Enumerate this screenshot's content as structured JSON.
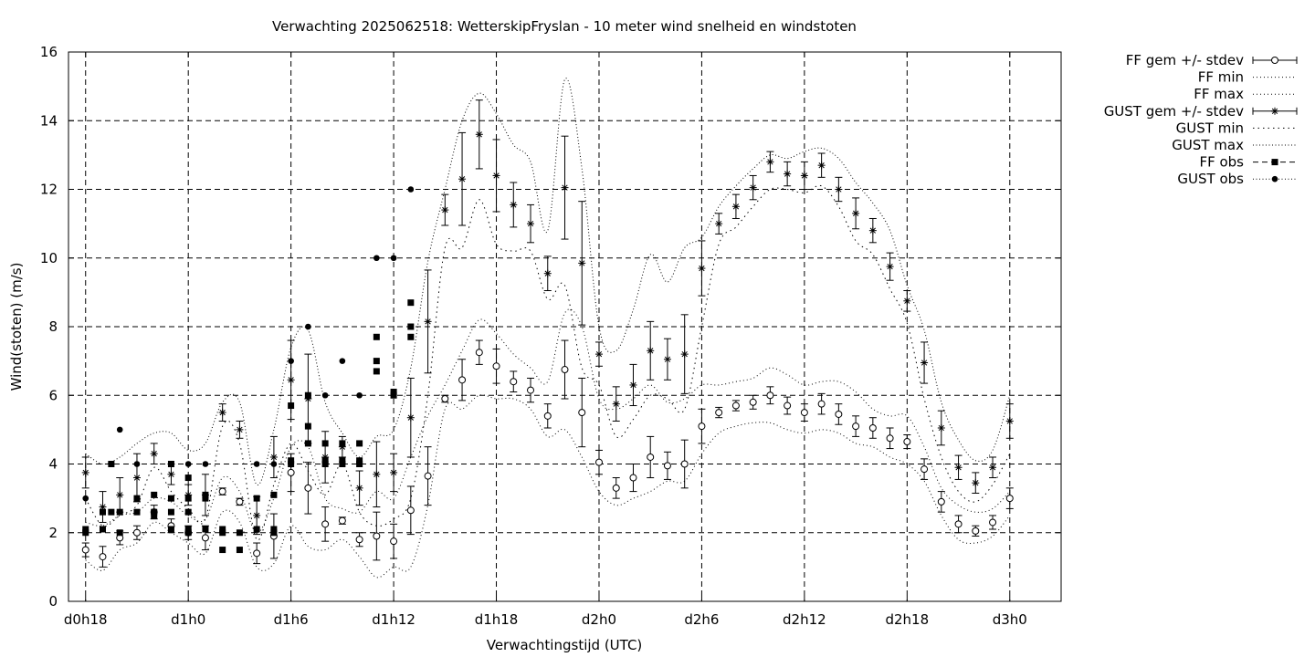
{
  "chart_data": {
    "type": "scatter",
    "title": "Verwachting 2025062518: WetterskipFryslan - 10 meter wind snelheid en windstoten",
    "xlabel": "Verwachtingstijd (UTC)",
    "ylabel": "Wind(stoten) (m/s)",
    "xlim": [
      -1,
      57
    ],
    "ylim": [
      0,
      16
    ],
    "x_unit": "hours after d0h18",
    "yticks": [
      0,
      2,
      4,
      6,
      8,
      10,
      12,
      14,
      16
    ],
    "xticks": [
      {
        "x": 0,
        "label": "d0h18"
      },
      {
        "x": 6,
        "label": "d1h0"
      },
      {
        "x": 12,
        "label": "d1h6"
      },
      {
        "x": 18,
        "label": "d1h12"
      },
      {
        "x": 24,
        "label": "d1h18"
      },
      {
        "x": 30,
        "label": "d2h0"
      },
      {
        "x": 36,
        "label": "d2h6"
      },
      {
        "x": 42,
        "label": "d2h12"
      },
      {
        "x": 48,
        "label": "d2h18"
      },
      {
        "x": 54,
        "label": "d3h0"
      }
    ],
    "grid": true,
    "legend_position": "outside right top",
    "series": [
      {
        "name": "FF gem +/- stdev",
        "style": "errorbar-open-circle",
        "x": [
          0,
          1,
          2,
          3,
          4,
          5,
          6,
          7,
          8,
          9,
          10,
          11,
          12,
          13,
          14,
          15,
          16,
          17,
          18,
          19,
          20,
          21,
          22,
          23,
          24,
          25,
          26,
          27,
          28,
          29,
          30,
          31,
          32,
          33,
          34,
          35,
          36,
          37,
          38,
          39,
          40,
          41,
          42,
          43,
          44,
          45,
          46,
          47,
          48,
          49,
          50,
          51,
          52,
          53,
          54
        ],
        "y": [
          1.5,
          1.3,
          1.85,
          2.0,
          2.6,
          2.2,
          2.0,
          1.85,
          3.2,
          2.9,
          1.4,
          1.9,
          3.75,
          3.3,
          2.25,
          2.35,
          1.8,
          1.9,
          1.75,
          2.65,
          3.65,
          5.9,
          6.45,
          7.25,
          6.85,
          6.4,
          6.15,
          5.4,
          6.75,
          5.5,
          4.05,
          3.3,
          3.6,
          4.2,
          3.95,
          4.0,
          5.1,
          5.5,
          5.7,
          5.8,
          6.0,
          5.7,
          5.5,
          5.75,
          5.45,
          5.1,
          5.05,
          4.75,
          4.65,
          3.85,
          2.9,
          2.25,
          2.05,
          2.3,
          3.0
        ],
        "stdev": [
          0.2,
          0.3,
          0.2,
          0.2,
          0.2,
          0.2,
          0.2,
          0.35,
          0.1,
          0.1,
          0.3,
          0.65,
          0.55,
          0.75,
          0.5,
          0.1,
          0.2,
          0.7,
          0.5,
          0.7,
          0.85,
          0.1,
          0.6,
          0.35,
          0.5,
          0.3,
          0.35,
          0.35,
          0.85,
          1.0,
          0.35,
          0.3,
          0.4,
          0.6,
          0.4,
          0.7,
          0.5,
          0.15,
          0.15,
          0.2,
          0.25,
          0.25,
          0.25,
          0.3,
          0.3,
          0.3,
          0.3,
          0.3,
          0.2,
          0.3,
          0.3,
          0.25,
          0.15,
          0.2,
          0.3
        ]
      },
      {
        "name": "FF min",
        "style": "dotted-line",
        "x": [
          0,
          1,
          2,
          3,
          4,
          5,
          6,
          7,
          8,
          9,
          10,
          11,
          12,
          13,
          14,
          15,
          16,
          17,
          18,
          19,
          20,
          21,
          22,
          23,
          24,
          25,
          26,
          27,
          28,
          29,
          30,
          31,
          32,
          33,
          34,
          35,
          36,
          37,
          38,
          39,
          40,
          41,
          42,
          43,
          44,
          45,
          46,
          47,
          48,
          49,
          50,
          51,
          52,
          53,
          54
        ],
        "y": [
          1.2,
          0.9,
          1.5,
          1.7,
          2.3,
          2.0,
          1.7,
          1.4,
          2.6,
          2.3,
          1.0,
          1.1,
          2.2,
          1.6,
          1.5,
          1.8,
          1.3,
          0.7,
          1.0,
          1.0,
          2.8,
          5.6,
          5.6,
          6.0,
          5.9,
          5.9,
          5.6,
          4.8,
          5.0,
          4.2,
          3.2,
          2.8,
          3.0,
          3.2,
          3.5,
          3.5,
          4.3,
          4.9,
          5.1,
          5.2,
          5.2,
          5.0,
          4.9,
          5.0,
          4.9,
          4.6,
          4.5,
          4.2,
          4.0,
          3.5,
          2.5,
          1.8,
          1.7,
          1.9,
          2.5
        ]
      },
      {
        "name": "FF max",
        "style": "dotted-line",
        "x": [
          0,
          1,
          2,
          3,
          4,
          5,
          6,
          7,
          8,
          9,
          10,
          11,
          12,
          13,
          14,
          15,
          16,
          17,
          18,
          19,
          20,
          21,
          22,
          23,
          24,
          25,
          26,
          27,
          28,
          29,
          30,
          31,
          32,
          33,
          34,
          35,
          36,
          37,
          38,
          39,
          40,
          41,
          42,
          43,
          44,
          45,
          46,
          47,
          48,
          49,
          50,
          51,
          52,
          53,
          54
        ],
        "y": [
          2.3,
          2.2,
          2.5,
          2.6,
          3.0,
          2.9,
          2.5,
          2.4,
          3.6,
          3.2,
          2.0,
          3.0,
          4.5,
          4.5,
          3.0,
          2.7,
          2.6,
          3.2,
          3.0,
          4.2,
          5.4,
          6.3,
          7.3,
          8.2,
          7.8,
          7.2,
          6.8,
          6.4,
          8.4,
          8.0,
          5.9,
          5.6,
          5.9,
          6.3,
          5.8,
          5.9,
          6.3,
          6.3,
          6.4,
          6.5,
          6.8,
          6.6,
          6.3,
          6.4,
          6.4,
          6.1,
          5.6,
          5.4,
          5.4,
          4.5,
          3.3,
          2.8,
          2.6,
          2.7,
          3.2
        ]
      },
      {
        "name": "GUST gem +/- stdev",
        "style": "errorbar-star",
        "x": [
          0,
          1,
          2,
          3,
          4,
          5,
          6,
          7,
          8,
          9,
          10,
          11,
          12,
          13,
          14,
          15,
          16,
          17,
          18,
          19,
          20,
          21,
          22,
          23,
          24,
          25,
          26,
          27,
          28,
          29,
          30,
          31,
          32,
          33,
          34,
          35,
          36,
          37,
          38,
          39,
          40,
          41,
          42,
          43,
          44,
          45,
          46,
          47,
          48,
          49,
          50,
          51,
          52,
          53,
          54
        ],
        "y": [
          3.75,
          2.75,
          3.1,
          3.6,
          4.3,
          3.7,
          3.1,
          3.1,
          5.5,
          5.0,
          2.5,
          4.2,
          6.45,
          5.9,
          4.2,
          4.5,
          3.3,
          3.7,
          3.75,
          5.35,
          8.15,
          11.4,
          12.3,
          13.6,
          12.4,
          11.55,
          11.0,
          9.55,
          12.05,
          9.85,
          7.2,
          5.75,
          6.3,
          7.3,
          7.05,
          7.2,
          9.7,
          11.0,
          11.5,
          12.05,
          12.8,
          12.45,
          12.4,
          12.7,
          12.0,
          11.3,
          10.8,
          9.75,
          8.75,
          6.95,
          5.05,
          3.9,
          3.45,
          3.9,
          5.25
        ],
        "stdev": [
          0.45,
          0.45,
          0.5,
          0.7,
          0.3,
          0.3,
          0.3,
          0.6,
          0.25,
          0.25,
          0.55,
          0.6,
          1.15,
          1.3,
          0.75,
          0.3,
          0.5,
          0.95,
          0.55,
          1.15,
          1.5,
          0.45,
          1.35,
          1.0,
          1.05,
          0.65,
          0.55,
          0.5,
          1.5,
          1.8,
          0.35,
          0.5,
          0.6,
          0.85,
          0.6,
          1.15,
          0.8,
          0.3,
          0.35,
          0.35,
          0.3,
          0.35,
          0.4,
          0.35,
          0.35,
          0.45,
          0.35,
          0.4,
          0.3,
          0.6,
          0.5,
          0.35,
          0.3,
          0.3,
          0.5
        ]
      },
      {
        "name": "GUST min",
        "style": "dotted-line",
        "x": [
          0,
          1,
          2,
          3,
          4,
          5,
          6,
          7,
          8,
          9,
          10,
          11,
          12,
          13,
          14,
          15,
          16,
          17,
          18,
          19,
          20,
          21,
          22,
          23,
          24,
          25,
          26,
          27,
          28,
          29,
          30,
          31,
          32,
          33,
          34,
          35,
          36,
          37,
          38,
          39,
          40,
          41,
          42,
          43,
          44,
          45,
          46,
          47,
          48,
          49,
          50,
          51,
          52,
          53,
          54
        ],
        "y": [
          3.0,
          2.2,
          2.5,
          2.8,
          3.9,
          3.2,
          2.7,
          2.4,
          5.1,
          4.6,
          1.8,
          3.4,
          4.6,
          3.8,
          3.1,
          4.0,
          2.6,
          2.2,
          2.4,
          3.0,
          6.0,
          10.3,
          10.3,
          11.7,
          10.4,
          10.2,
          10.2,
          8.8,
          9.2,
          6.8,
          6.3,
          4.8,
          5.3,
          6.0,
          5.9,
          5.6,
          8.0,
          10.4,
          10.9,
          11.5,
          12.0,
          12.0,
          11.9,
          12.1,
          11.5,
          10.5,
          10.1,
          9.1,
          8.1,
          5.9,
          4.2,
          3.2,
          2.9,
          3.4,
          4.3
        ]
      },
      {
        "name": "GUST max",
        "style": "dotted-line",
        "x": [
          0,
          1,
          2,
          3,
          4,
          5,
          6,
          7,
          8,
          9,
          10,
          11,
          12,
          13,
          14,
          15,
          16,
          17,
          18,
          19,
          20,
          21,
          22,
          23,
          24,
          25,
          26,
          27,
          28,
          29,
          30,
          31,
          32,
          33,
          34,
          35,
          36,
          37,
          38,
          39,
          40,
          41,
          42,
          43,
          44,
          45,
          46,
          47,
          48,
          49,
          50,
          51,
          52,
          53,
          54
        ],
        "y": [
          4.3,
          4.0,
          4.2,
          4.6,
          4.9,
          4.9,
          4.4,
          4.6,
          5.8,
          5.8,
          3.4,
          5.0,
          7.4,
          7.9,
          5.8,
          4.9,
          4.2,
          4.8,
          5.0,
          6.8,
          9.9,
          12.0,
          14.0,
          14.8,
          14.2,
          13.3,
          12.8,
          10.8,
          15.2,
          12.6,
          8.0,
          7.3,
          8.5,
          10.1,
          9.3,
          10.3,
          10.6,
          11.5,
          12.1,
          12.6,
          13.0,
          12.9,
          13.1,
          13.2,
          12.9,
          12.2,
          11.6,
          10.8,
          9.2,
          7.9,
          5.8,
          4.7,
          4.1,
          4.4,
          6.0
        ]
      },
      {
        "name": "FF obs",
        "style": "filled-square",
        "x": [
          0,
          0,
          1,
          1,
          1.5,
          1.5,
          2,
          2,
          3,
          3,
          4,
          4,
          4,
          5,
          5,
          5,
          5,
          6,
          6,
          6,
          6,
          6,
          7,
          7,
          7,
          8,
          8,
          8,
          9,
          9,
          10,
          10,
          11,
          11,
          11,
          12,
          12,
          12,
          13,
          13,
          13,
          14,
          14,
          14,
          15,
          15,
          15,
          16,
          16,
          16,
          17,
          17,
          17,
          18,
          18,
          19,
          19,
          19
        ],
        "y": [
          2.1,
          2.0,
          2.6,
          2.1,
          4.0,
          2.6,
          2.6,
          2.0,
          3.0,
          2.6,
          3.1,
          2.6,
          2.5,
          4.0,
          3.0,
          2.6,
          2.1,
          3.6,
          3.0,
          2.6,
          2.1,
          2.0,
          3.0,
          3.1,
          2.1,
          2.1,
          2.0,
          1.5,
          2.0,
          1.5,
          3.0,
          2.1,
          3.1,
          2.1,
          2.0,
          5.7,
          4.1,
          4.0,
          6.0,
          5.1,
          4.6,
          4.6,
          4.1,
          4.0,
          4.6,
          4.1,
          4.0,
          4.6,
          4.1,
          4.0,
          7.7,
          7.0,
          6.7,
          6.1,
          6.0,
          8.7,
          8.0,
          7.7
        ]
      },
      {
        "name": "GUST obs",
        "style": "filled-circle",
        "x": [
          0,
          2,
          3,
          5,
          6,
          7,
          10,
          11,
          12,
          13,
          14,
          15,
          16,
          17,
          18,
          19
        ],
        "y": [
          3.0,
          5.0,
          4.0,
          4.0,
          4.0,
          4.0,
          4.0,
          4.0,
          7.0,
          8.0,
          6.0,
          7.0,
          6.0,
          10.0,
          10.0,
          12.0
        ]
      }
    ]
  }
}
